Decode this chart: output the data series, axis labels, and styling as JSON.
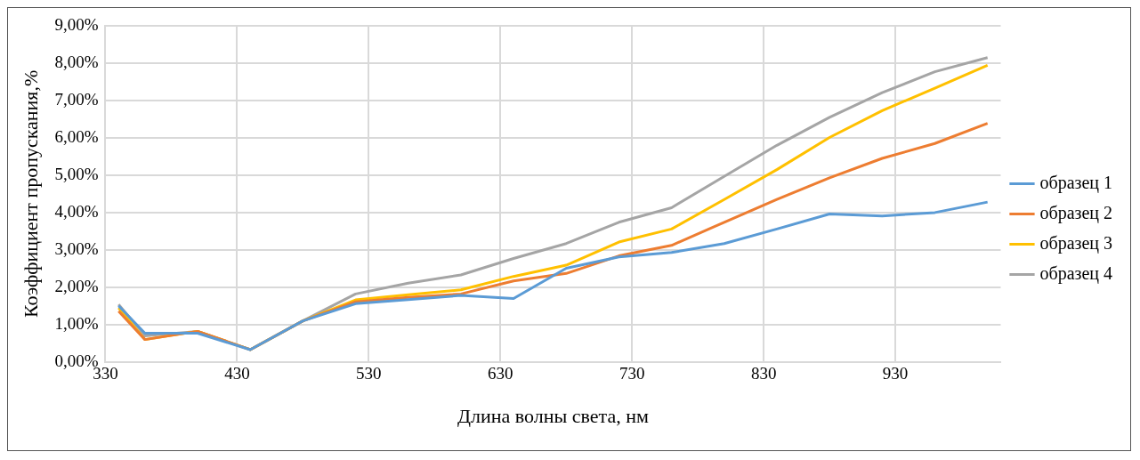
{
  "chart_data": {
    "type": "line",
    "xlabel": "Длина волны света, нм",
    "ylabel": "Коэффициент пропускания,%",
    "x": [
      340,
      360,
      400,
      440,
      480,
      520,
      560,
      600,
      640,
      680,
      720,
      760,
      800,
      840,
      880,
      920,
      960,
      1000
    ],
    "series": [
      {
        "name": "образец 1",
        "color": "#5b9bd5",
        "values": [
          1.5,
          0.77,
          0.77,
          0.33,
          1.1,
          1.56,
          1.67,
          1.78,
          1.7,
          2.51,
          2.81,
          2.93,
          3.17,
          3.56,
          3.96,
          3.91,
          4.0,
          4.28
        ]
      },
      {
        "name": "образец 2",
        "color": "#ed7d31",
        "values": [
          1.36,
          0.6,
          0.82,
          0.33,
          1.1,
          1.61,
          1.73,
          1.82,
          2.17,
          2.37,
          2.84,
          3.12,
          3.74,
          4.35,
          4.93,
          5.45,
          5.85,
          6.39
        ]
      },
      {
        "name": "образец 3",
        "color": "#ffc000",
        "values": [
          1.45,
          0.6,
          0.82,
          0.33,
          1.1,
          1.66,
          1.8,
          1.93,
          2.29,
          2.59,
          3.21,
          3.56,
          4.35,
          5.15,
          6.01,
          6.73,
          7.33,
          7.94
        ]
      },
      {
        "name": "образец 4",
        "color": "#a5a5a5",
        "values": [
          1.54,
          0.7,
          0.82,
          0.33,
          1.1,
          1.82,
          2.11,
          2.33,
          2.77,
          3.17,
          3.74,
          4.13,
          4.97,
          5.8,
          6.55,
          7.21,
          7.77,
          8.15
        ]
      }
    ],
    "xlim": [
      330,
      1010
    ],
    "xticks": [
      330,
      430,
      530,
      630,
      730,
      830,
      930
    ],
    "ylim": [
      0,
      9
    ],
    "yticks": [
      {
        "value": 0,
        "label": "0,00%"
      },
      {
        "value": 1,
        "label": "1,00%"
      },
      {
        "value": 2,
        "label": "2,00%"
      },
      {
        "value": 3,
        "label": "3,00%"
      },
      {
        "value": 4,
        "label": "4,00%"
      },
      {
        "value": 5,
        "label": "5,00%"
      },
      {
        "value": 6,
        "label": "6,00%"
      },
      {
        "value": 7,
        "label": "7,00%"
      },
      {
        "value": 8,
        "label": "8,00%"
      },
      {
        "value": 9,
        "label": "9,00%"
      }
    ],
    "grid": true,
    "legend": "right",
    "marker": "none",
    "line_style": "solid"
  }
}
